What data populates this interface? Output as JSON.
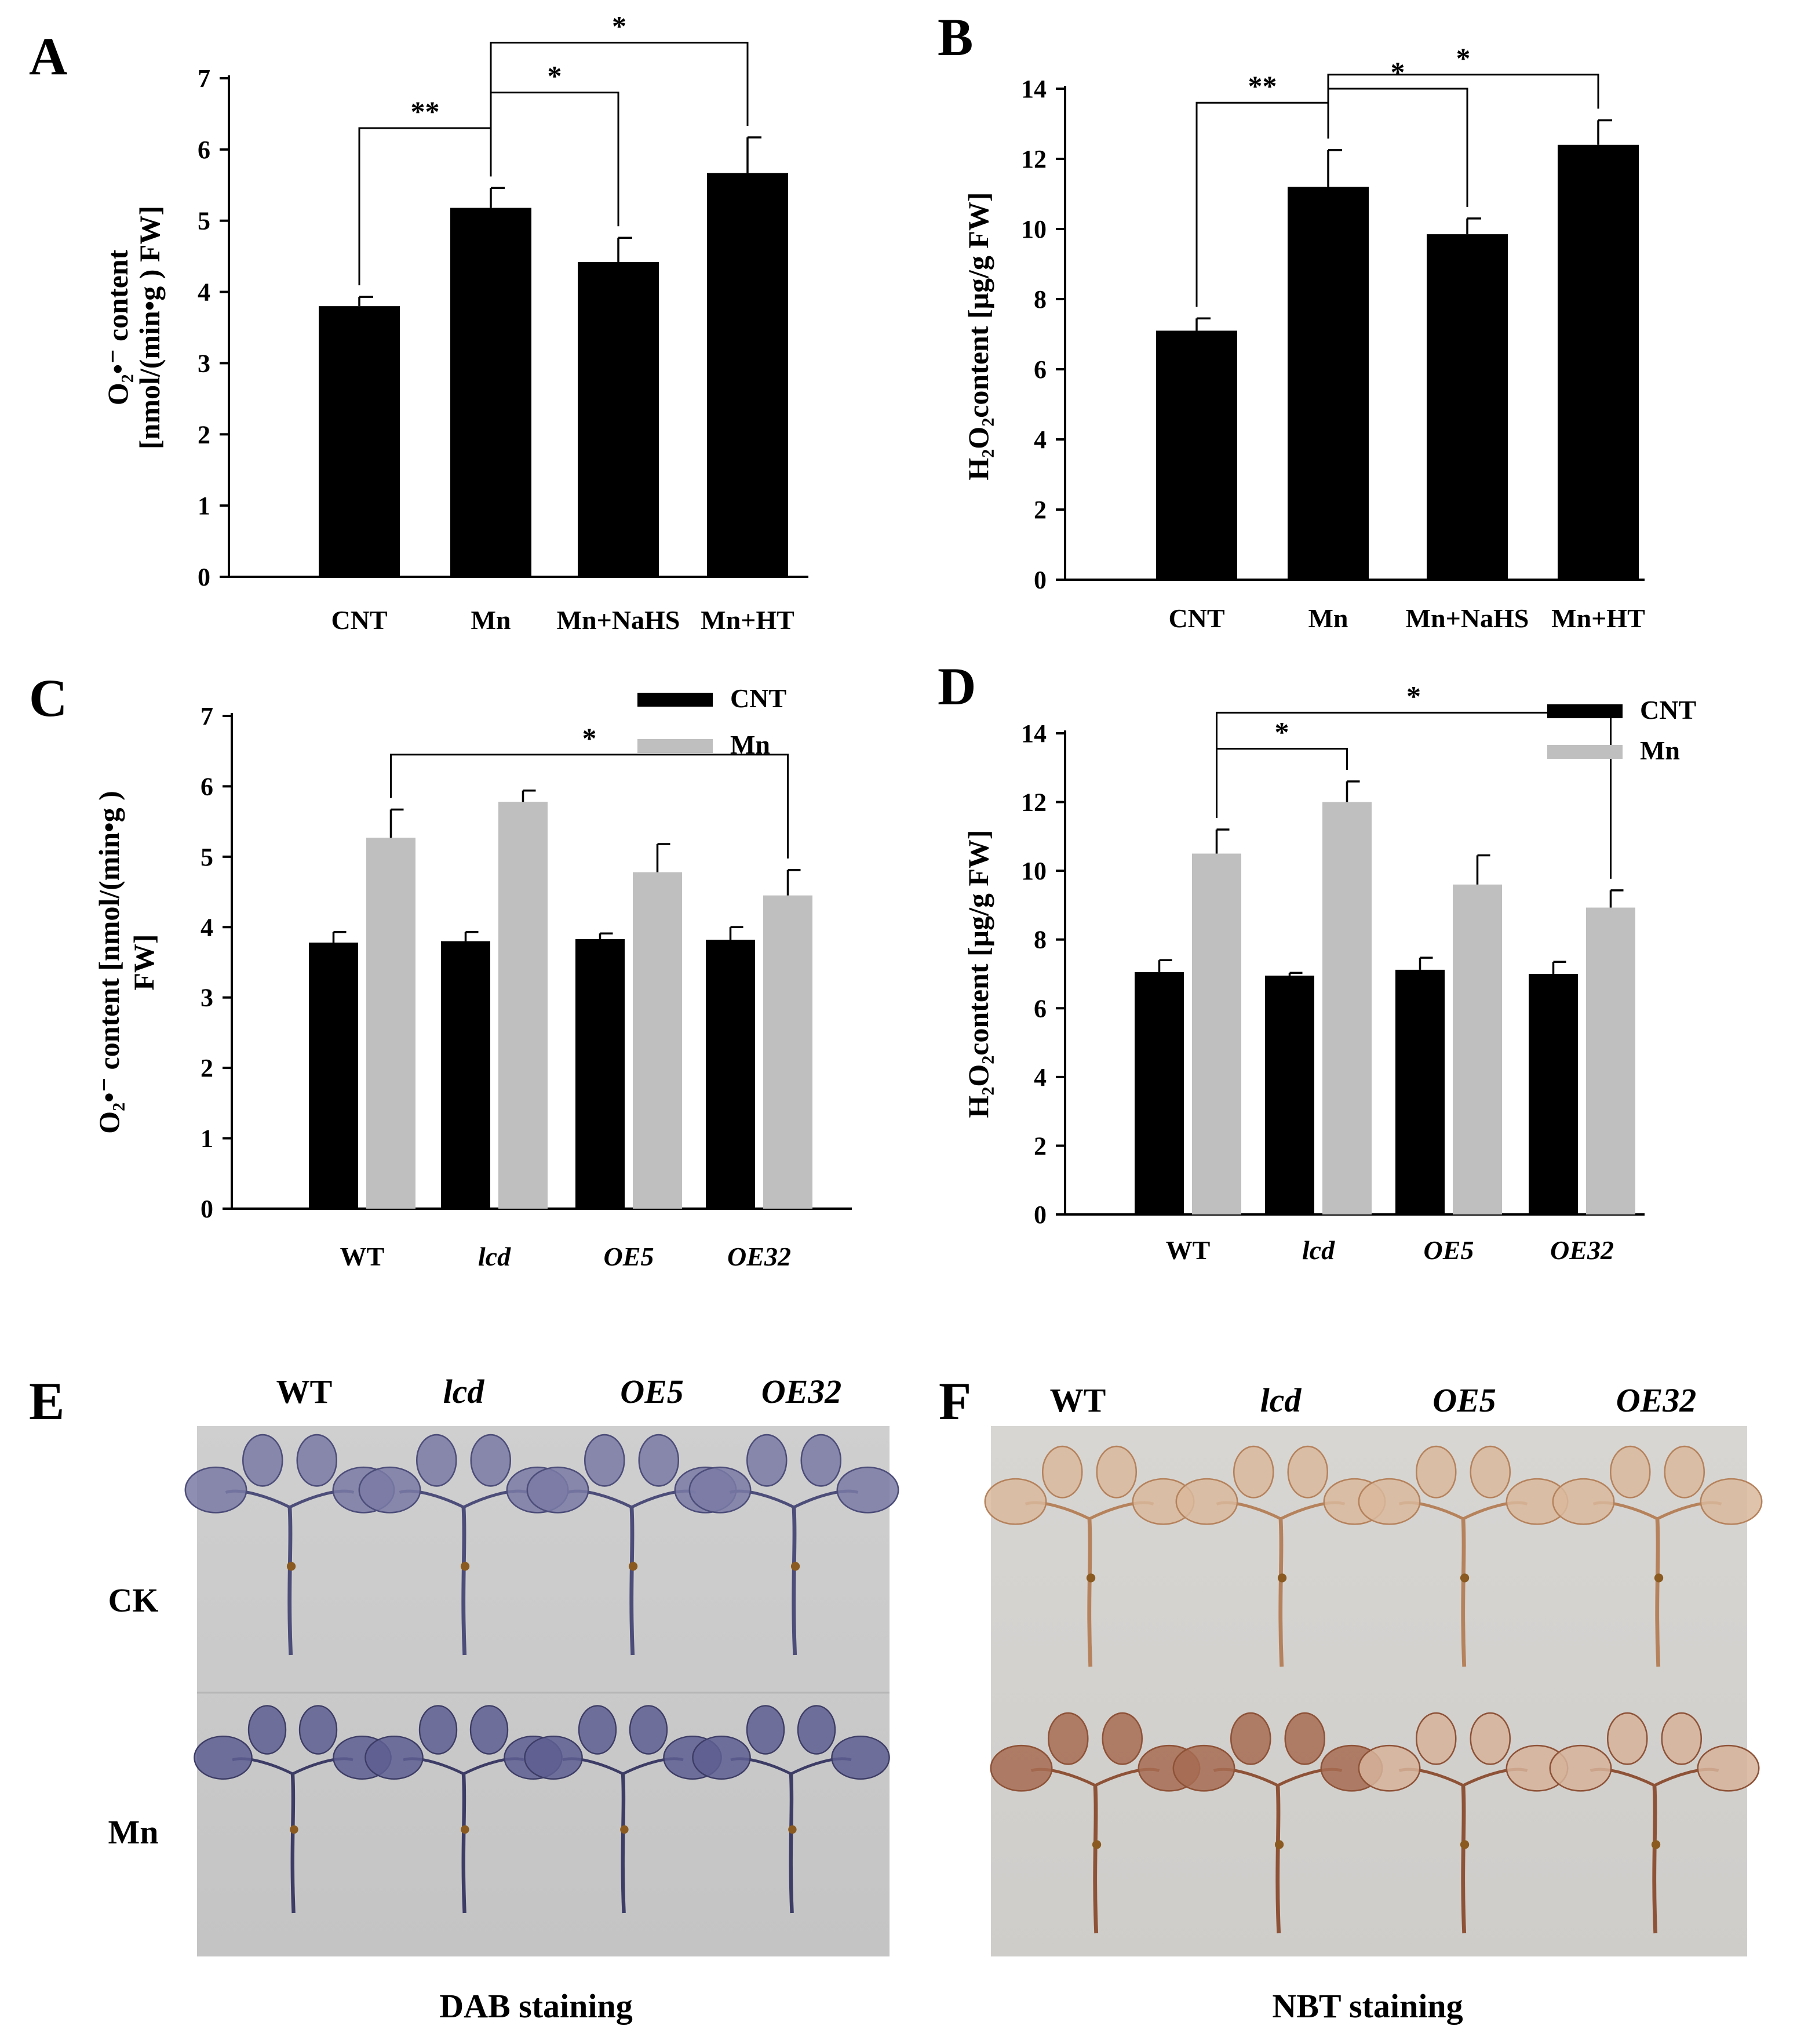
{
  "colors": {
    "cnt": "#000000",
    "mn": "#bfbfbf",
    "dab": "#5a5a8e",
    "nbt": "#b98a6b"
  },
  "chart_data": [
    {
      "id": "A",
      "type": "bar",
      "panel_label": "A",
      "categories": [
        "CNT",
        "Mn",
        "Mn+NaHS",
        "Mn+HT"
      ],
      "values": [
        3.8,
        5.18,
        4.42,
        5.67
      ],
      "errors": [
        0.13,
        0.28,
        0.34,
        0.5
      ],
      "ylabel_line1": "O₂•⁻ content",
      "ylabel_line2": "[nmol/(min•g ) FW]",
      "ylim": [
        0,
        7
      ],
      "yticks": [
        "0",
        "1",
        "2",
        "3",
        "4",
        "5",
        "6",
        "7"
      ],
      "significance": [
        {
          "from": 0,
          "to": 1,
          "label": "**"
        },
        {
          "from": 1,
          "to": 2,
          "label": "*"
        },
        {
          "from": 1,
          "to": 3,
          "label": "*"
        }
      ]
    },
    {
      "id": "B",
      "type": "bar",
      "panel_label": "B",
      "categories": [
        "CNT",
        "Mn",
        "Mn+NaHS",
        "Mn+HT"
      ],
      "values": [
        7.1,
        11.2,
        9.85,
        12.4
      ],
      "errors": [
        0.35,
        1.05,
        0.45,
        0.7
      ],
      "ylabel_line1": "H₂O₂content [μg/g FW]",
      "ylim": [
        0,
        14
      ],
      "yticks": [
        "0",
        "2",
        "4",
        "6",
        "8",
        "10",
        "12",
        "14"
      ],
      "significance": [
        {
          "from": 0,
          "to": 1,
          "label": "**"
        },
        {
          "from": 1,
          "to": 2,
          "label": "*"
        },
        {
          "from": 1,
          "to": 3,
          "label": "*"
        }
      ]
    },
    {
      "id": "C",
      "type": "bar",
      "panel_label": "C",
      "categories": [
        "WT",
        "lcd",
        "OE5",
        "OE32"
      ],
      "italic": [
        false,
        true,
        true,
        true
      ],
      "series": [
        {
          "name": "CNT",
          "values": [
            3.78,
            3.8,
            3.83,
            3.82
          ],
          "errors": [
            0.15,
            0.13,
            0.08,
            0.18
          ]
        },
        {
          "name": "Mn",
          "values": [
            5.27,
            5.78,
            4.78,
            4.45
          ],
          "errors": [
            0.4,
            0.16,
            0.4,
            0.36
          ]
        }
      ],
      "ylabel_line1": "O₂•⁻ content [nmol/(min•g )",
      "ylabel_line2": "FW]",
      "ylim": [
        0,
        7
      ],
      "yticks": [
        "0",
        "1",
        "2",
        "3",
        "4",
        "5",
        "6",
        "7"
      ],
      "significance": [
        {
          "from": 0,
          "to": 3,
          "label": "*"
        }
      ],
      "legend": [
        "CNT",
        "Mn"
      ]
    },
    {
      "id": "D",
      "type": "bar",
      "panel_label": "D",
      "categories": [
        "WT",
        "lcd",
        "OE5",
        "OE32"
      ],
      "italic": [
        false,
        true,
        true,
        true
      ],
      "series": [
        {
          "name": "CNT",
          "values": [
            7.05,
            6.95,
            7.12,
            7.0
          ],
          "errors": [
            0.35,
            0.08,
            0.35,
            0.35
          ]
        },
        {
          "name": "Mn",
          "values": [
            10.5,
            12.0,
            9.6,
            8.93
          ],
          "errors": [
            0.7,
            0.6,
            0.85,
            0.5
          ]
        }
      ],
      "ylabel_line1": "H₂O₂content [μg/g FW]",
      "ylim": [
        0,
        14
      ],
      "yticks": [
        "0",
        "2",
        "4",
        "6",
        "8",
        "10",
        "12",
        "14"
      ],
      "significance": [
        {
          "from": 0,
          "to": 1,
          "label": "*"
        },
        {
          "from": 0,
          "to": 3,
          "label": "*"
        }
      ],
      "legend": [
        "CNT",
        "Mn"
      ]
    }
  ],
  "photos": {
    "E": {
      "panel_label": "E",
      "columns": [
        "WT",
        "lcd",
        "OE5",
        "OE32"
      ],
      "rows": [
        "CK",
        "Mn"
      ],
      "caption": "DAB staining"
    },
    "F": {
      "panel_label": "F",
      "columns": [
        "WT",
        "lcd",
        "OE5",
        "OE32"
      ],
      "caption": "NBT staining"
    }
  }
}
